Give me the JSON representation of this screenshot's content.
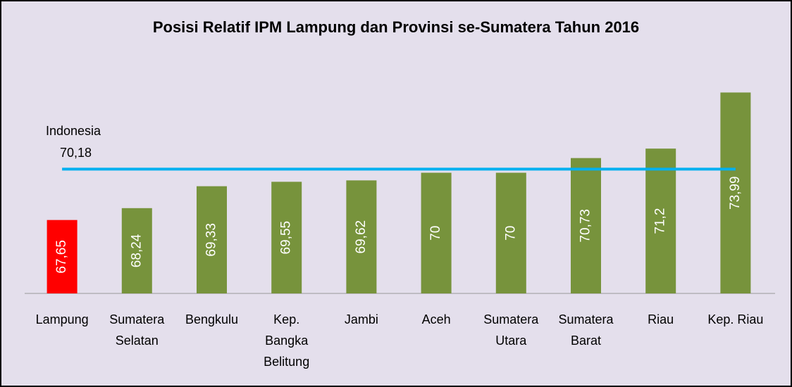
{
  "chart_data": {
    "type": "bar",
    "title": "Posisi Relatif IPM Lampung dan Provinsi se-Sumatera Tahun 2016",
    "categories": [
      [
        "Lampung"
      ],
      [
        "Sumatera",
        "Selatan"
      ],
      [
        "Bengkulu"
      ],
      [
        "Kep.",
        "Bangka",
        "Belitung"
      ],
      [
        "Jambi"
      ],
      [
        "Aceh"
      ],
      [
        "Sumatera",
        "Utara"
      ],
      [
        "Sumatera",
        "Barat"
      ],
      [
        "Riau"
      ],
      [
        "Kep. Riau"
      ]
    ],
    "values": [
      67.65,
      68.24,
      69.33,
      69.55,
      69.62,
      70,
      70,
      70.73,
      71.2,
      73.99
    ],
    "value_labels": [
      "67,65",
      "68,24",
      "69,33",
      "69,55",
      "69,62",
      "70",
      "70",
      "70,73",
      "71,2",
      "73,99"
    ],
    "colors": [
      "#ff0000",
      "#77933c",
      "#77933c",
      "#77933c",
      "#77933c",
      "#77933c",
      "#77933c",
      "#77933c",
      "#77933c",
      "#77933c"
    ],
    "ylim": [
      64,
      76
    ],
    "reference_line": {
      "name": "Indonesia",
      "value": 70.18,
      "value_label": "70,18",
      "color": "#00b0f0"
    }
  }
}
